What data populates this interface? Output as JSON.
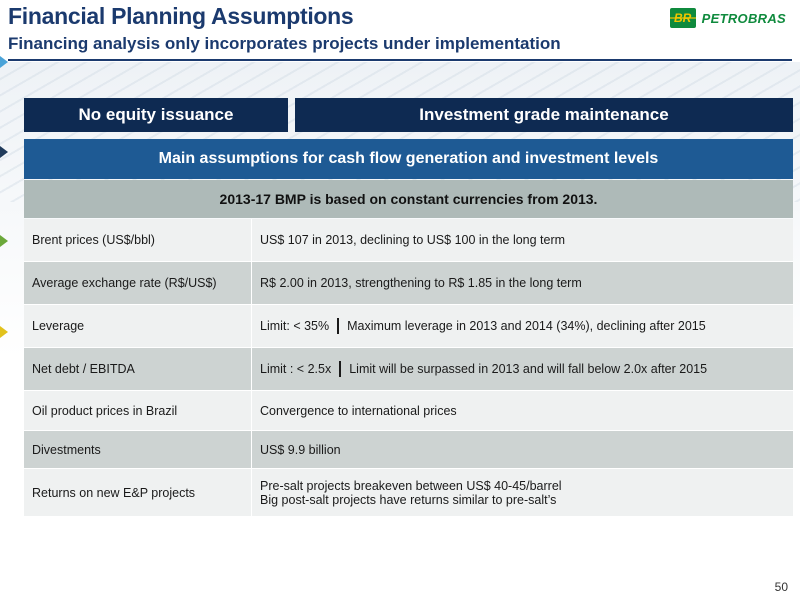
{
  "header": {
    "title": "Financial Planning Assumptions",
    "subtitle": "Financing analysis only incorporates projects under implementation",
    "logo": {
      "mark": "BR",
      "text": "PETROBRAS"
    }
  },
  "top_boxes": [
    "No equity issuance",
    "Investment grade maintenance"
  ],
  "table": {
    "header": "Main assumptions for cash flow generation and investment levels",
    "subheader": "2013-17 BMP is based on constant currencies from 2013.",
    "rows": [
      {
        "label": "Brent prices (US$/bbl)",
        "value": "US$ 107 in 2013, declining to US$ 100 in the long term"
      },
      {
        "label": "Average exchange rate (R$/US$)",
        "value": "R$ 2.00 in 2013, strengthening to R$ 1.85 in the long term"
      },
      {
        "label": "Leverage",
        "limit": "Limit:  < 35%",
        "value": "Maximum leverage in 2013 and 2014 (34%), declining after 2015"
      },
      {
        "label": "Net debt  / EBITDA",
        "limit": "Limit : < 2.5x",
        "value": "Limit will be surpassed in 2013 and will fall below 2.0x after 2015"
      },
      {
        "label": "Oil product prices in Brazil",
        "value": "Convergence to international prices"
      },
      {
        "label": "Divestments",
        "value": "US$ 9.9 billion"
      },
      {
        "label": "Returns on new E&P projects",
        "value_lines": [
          "Pre-salt projects breakeven between US$ 40-45/barrel",
          "Big post-salt projects have returns similar to pre-salt’s"
        ]
      }
    ]
  },
  "page_number": "50",
  "colors": {
    "navy": "#0e2a52",
    "blue": "#1e5a94",
    "gray": "#aebab8",
    "brand_green": "#0f8a3d",
    "brand_yellow": "#f2c500"
  }
}
